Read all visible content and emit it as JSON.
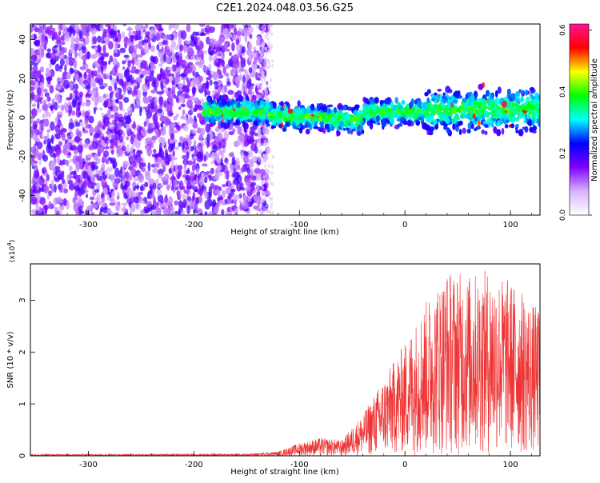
{
  "chart_data": [
    {
      "type": "heatmap",
      "title": "C2E1.2024.048.03.56.G25",
      "xlabel": "Height of straight line (km)",
      "ylabel": "Frequency (Hz)",
      "xlim": [
        -355,
        128
      ],
      "ylim": [
        -50,
        48
      ],
      "xticks": [
        -300,
        -200,
        -100,
        0,
        100
      ],
      "yticks": [
        -40,
        -20,
        0,
        20,
        40
      ],
      "grid": false,
      "colorbar": {
        "label": "Normalized spectral amplitude",
        "range": [
          0,
          0.62
        ],
        "ticks": [
          "0.0",
          "0.2",
          "0.4",
          "0.6"
        ],
        "tick_values": [
          0,
          0.2,
          0.4,
          0.6
        ],
        "colormap": [
          "#ffffff",
          "#d9b3ff",
          "#8000ff",
          "#0000ff",
          "#00ffff",
          "#00ff00",
          "#ffff00",
          "#ff0000",
          "#ff1493"
        ]
      },
      "regions": [
        {
          "x_range": [
            -355,
            -140
          ],
          "freq_range": [
            -50,
            48
          ],
          "amplitude": 0.06,
          "description_color": "#8a2be2"
        },
        {
          "x_range": [
            -140,
            -125
          ],
          "freq_range": [
            -50,
            48
          ],
          "amplitude": 0.02
        },
        {
          "x_range": [
            -190,
            128
          ],
          "freq_center": 3,
          "freq_halfwidth": 8,
          "amplitude": 0.25
        }
      ]
    },
    {
      "type": "line",
      "xlabel": "Height of straight line (km)",
      "ylabel": "SNR (10 * v/v)",
      "y_scale_label": "(x10",
      "y_scale_exponent": "4",
      "y_scale_close": ")",
      "xlim": [
        -355,
        128
      ],
      "ylim": [
        0,
        3.7
      ],
      "xticks": [
        -300,
        -200,
        -100,
        0,
        100
      ],
      "yticks": [
        0,
        1,
        2,
        3
      ],
      "series_color": "#ee3333",
      "envelope": [
        {
          "x": -355,
          "y": 0.03
        },
        {
          "x": -150,
          "y": 0.04
        },
        {
          "x": -120,
          "y": 0.08
        },
        {
          "x": -100,
          "y": 0.25
        },
        {
          "x": -80,
          "y": 0.35
        },
        {
          "x": -60,
          "y": 0.3
        },
        {
          "x": -40,
          "y": 0.8
        },
        {
          "x": -20,
          "y": 1.5
        },
        {
          "x": 0,
          "y": 2.2
        },
        {
          "x": 20,
          "y": 3.0
        },
        {
          "x": 40,
          "y": 3.6
        },
        {
          "x": 60,
          "y": 3.5
        },
        {
          "x": 80,
          "y": 3.6
        },
        {
          "x": 100,
          "y": 3.4
        },
        {
          "x": 128,
          "y": 2.8
        }
      ]
    }
  ]
}
